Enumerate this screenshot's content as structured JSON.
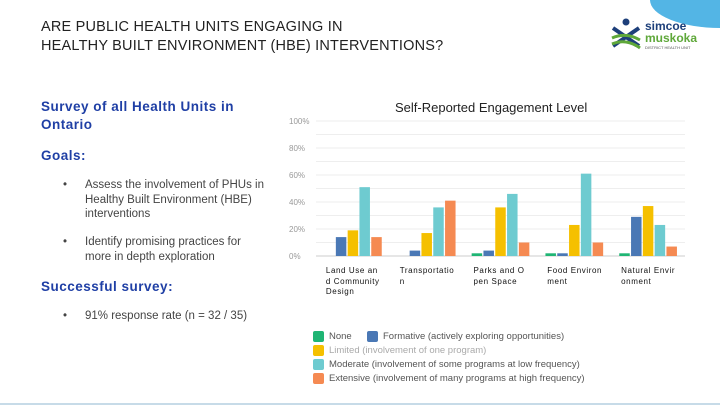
{
  "header": {
    "title_line1": "ARE PUBLIC HEALTH UNITS ENGAGING IN",
    "title_line2": "HEALTHY BUILT ENVIRONMENT (HBE) INTERVENTIONS?"
  },
  "logo": {
    "line1": "simcoe",
    "line2": "muskoka",
    "line3": "DISTRICT HEALTH UNIT"
  },
  "left": {
    "survey_heading": "Survey of all Health Units in Ontario",
    "goals_heading": "Goals:",
    "goals": [
      "Assess the involvement of PHUs in Healthy Built Environment (HBE) interventions",
      "Identify promising practices for more in depth exploration"
    ],
    "success_heading": "Successful survey:",
    "success_items": [
      "91% response rate (n = 32 / 35)"
    ],
    "bullet": "•"
  },
  "chart_data": {
    "type": "bar",
    "title": "Self-Reported Engagement Level",
    "categories": [
      "Land Use and Community Design",
      "Transportation",
      "Parks and Open Space",
      "Food Environment",
      "Natural Environment"
    ],
    "series": [
      {
        "name": "None",
        "color": "#1fb574",
        "values": [
          0,
          0,
          2,
          2,
          2
        ]
      },
      {
        "name": "Formative (actively exploring opportunities)",
        "color": "#4a78b5",
        "values": [
          14,
          4,
          4,
          2,
          29
        ]
      },
      {
        "name": "Limited (involvement of one program)",
        "color": "#f5c000",
        "values": [
          19,
          17,
          36,
          23,
          37
        ]
      },
      {
        "name": "Moderate (involvement of some programs at low frequency)",
        "color": "#6ecbd0",
        "values": [
          51,
          36,
          46,
          61,
          23
        ]
      },
      {
        "name": "Extensive (involvement of many programs at high frequency)",
        "color": "#f58a52",
        "values": [
          14,
          41,
          10,
          10,
          7
        ]
      }
    ],
    "yticks": [
      "0%",
      "20%",
      "40%",
      "60%",
      "80%",
      "100%"
    ],
    "ylim": [
      0,
      100
    ],
    "grid": true,
    "legend": "bottom"
  }
}
